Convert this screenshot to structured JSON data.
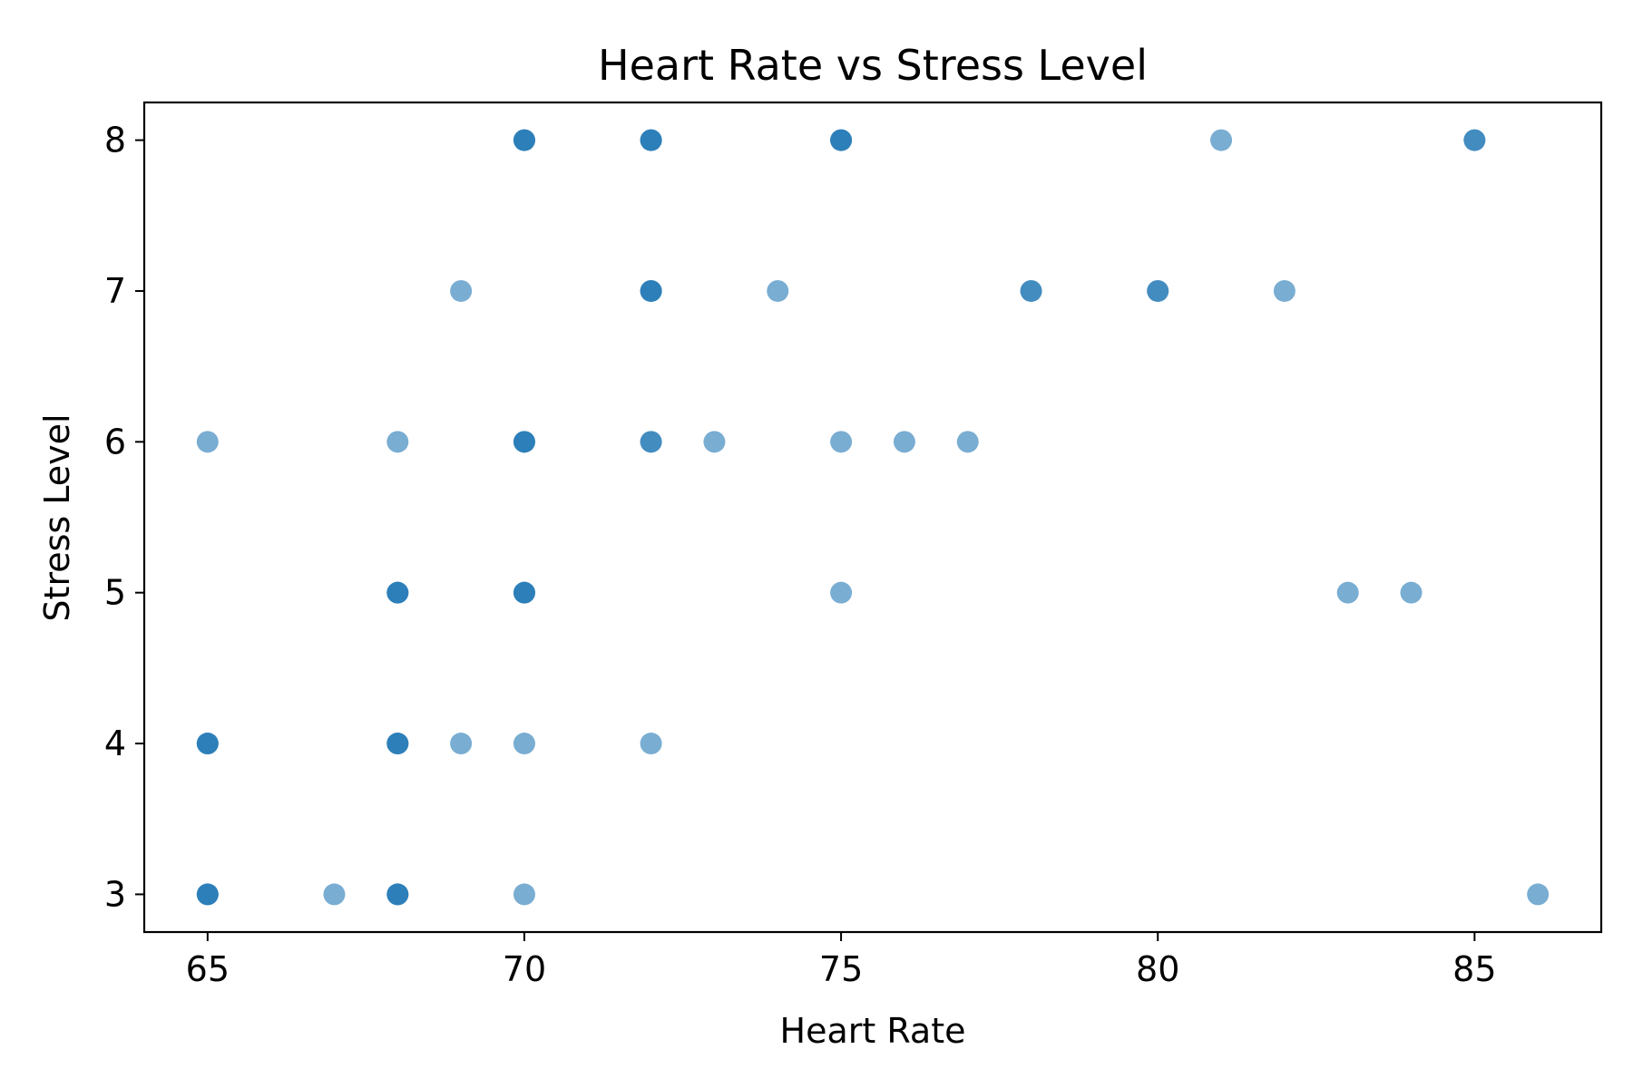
{
  "chart_data": {
    "type": "scatter",
    "title": "Heart Rate vs Stress Level",
    "xlabel": "Heart Rate",
    "ylabel": "Stress Level",
    "xlim": [
      64,
      87
    ],
    "ylim": [
      2.75,
      8.25
    ],
    "xticks": [
      65,
      70,
      75,
      80,
      85
    ],
    "yticks": [
      3,
      4,
      5,
      6,
      7,
      8
    ],
    "grid": false,
    "legend": "none",
    "marker_color": "#1f77b4",
    "marker_alpha": 0.6,
    "points": [
      {
        "x": 70,
        "y": 8
      },
      {
        "x": 70,
        "y": 8
      },
      {
        "x": 70,
        "y": 8
      },
      {
        "x": 72,
        "y": 8
      },
      {
        "x": 72,
        "y": 8
      },
      {
        "x": 72,
        "y": 8
      },
      {
        "x": 75,
        "y": 8
      },
      {
        "x": 75,
        "y": 8
      },
      {
        "x": 75,
        "y": 8
      },
      {
        "x": 81,
        "y": 8
      },
      {
        "x": 85,
        "y": 8
      },
      {
        "x": 85,
        "y": 8
      },
      {
        "x": 69,
        "y": 7
      },
      {
        "x": 72,
        "y": 7
      },
      {
        "x": 72,
        "y": 7
      },
      {
        "x": 72,
        "y": 7
      },
      {
        "x": 74,
        "y": 7
      },
      {
        "x": 78,
        "y": 7
      },
      {
        "x": 78,
        "y": 7
      },
      {
        "x": 80,
        "y": 7
      },
      {
        "x": 80,
        "y": 7
      },
      {
        "x": 82,
        "y": 7
      },
      {
        "x": 65,
        "y": 6
      },
      {
        "x": 68,
        "y": 6
      },
      {
        "x": 70,
        "y": 6
      },
      {
        "x": 70,
        "y": 6
      },
      {
        "x": 70,
        "y": 6
      },
      {
        "x": 72,
        "y": 6
      },
      {
        "x": 72,
        "y": 6
      },
      {
        "x": 73,
        "y": 6
      },
      {
        "x": 75,
        "y": 6
      },
      {
        "x": 76,
        "y": 6
      },
      {
        "x": 77,
        "y": 6
      },
      {
        "x": 68,
        "y": 5
      },
      {
        "x": 68,
        "y": 5
      },
      {
        "x": 68,
        "y": 5
      },
      {
        "x": 70,
        "y": 5
      },
      {
        "x": 70,
        "y": 5
      },
      {
        "x": 70,
        "y": 5
      },
      {
        "x": 75,
        "y": 5
      },
      {
        "x": 83,
        "y": 5
      },
      {
        "x": 84,
        "y": 5
      },
      {
        "x": 65,
        "y": 4
      },
      {
        "x": 65,
        "y": 4
      },
      {
        "x": 65,
        "y": 4
      },
      {
        "x": 68,
        "y": 4
      },
      {
        "x": 68,
        "y": 4
      },
      {
        "x": 68,
        "y": 4
      },
      {
        "x": 69,
        "y": 4
      },
      {
        "x": 70,
        "y": 4
      },
      {
        "x": 72,
        "y": 4
      },
      {
        "x": 65,
        "y": 3
      },
      {
        "x": 65,
        "y": 3
      },
      {
        "x": 65,
        "y": 3
      },
      {
        "x": 67,
        "y": 3
      },
      {
        "x": 68,
        "y": 3
      },
      {
        "x": 68,
        "y": 3
      },
      {
        "x": 68,
        "y": 3
      },
      {
        "x": 70,
        "y": 3
      },
      {
        "x": 86,
        "y": 3
      }
    ]
  }
}
